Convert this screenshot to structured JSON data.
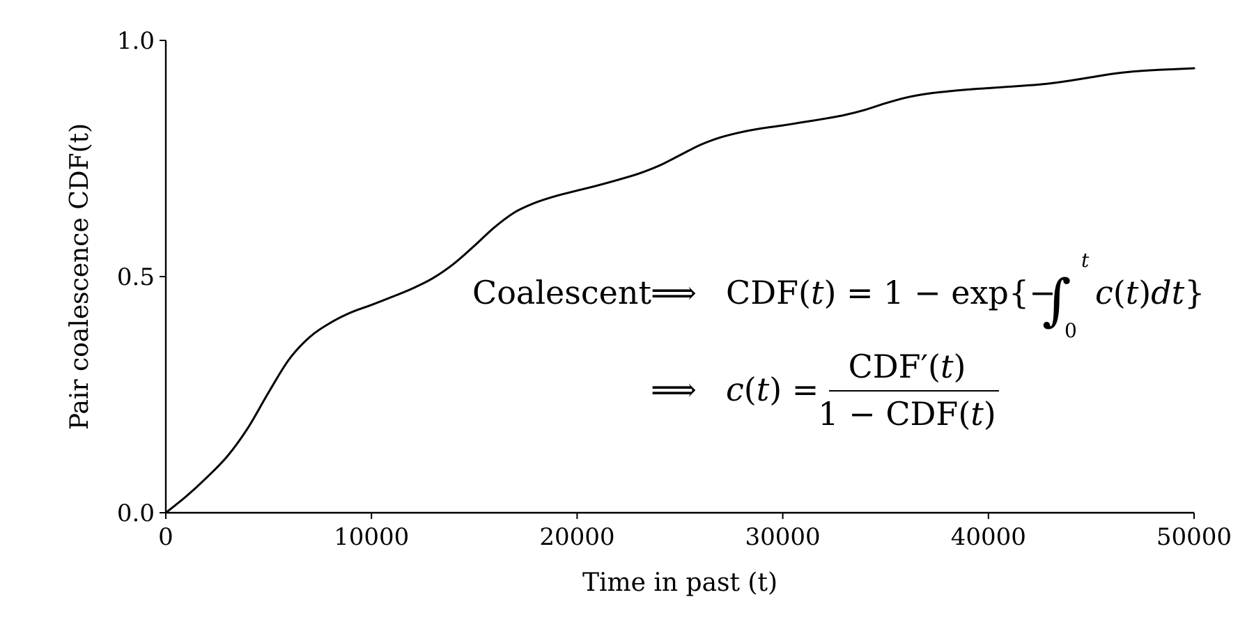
{
  "chart_data": {
    "type": "line",
    "title": "",
    "xlabel": "Time in past (t)",
    "ylabel": "Pair coalescence CDF(t)",
    "xlim": [
      0,
      50000
    ],
    "ylim": [
      0,
      1
    ],
    "x_ticks": [
      "0",
      "10000",
      "20000",
      "30000",
      "40000",
      "50000"
    ],
    "y_ticks": [
      "0.0",
      "0.5",
      "1.0"
    ],
    "grid": false,
    "legend": "none",
    "series": [
      {
        "x": [
          0,
          1000,
          2000,
          3000,
          4000,
          5000,
          6000,
          7000,
          8000,
          9000,
          10000,
          11000,
          12000,
          13000,
          14000,
          15000,
          16000,
          17000,
          18000,
          19000,
          20000,
          21000,
          22000,
          23000,
          24000,
          25000,
          26000,
          27000,
          28000,
          29000,
          30000,
          31000,
          32000,
          33000,
          34000,
          35000,
          36000,
          37000,
          38000,
          39000,
          40000,
          41000,
          42000,
          43000,
          44000,
          45000,
          46000,
          47000,
          48000,
          49000,
          50000
        ],
        "y": [
          0.0,
          0.035,
          0.075,
          0.12,
          0.18,
          0.255,
          0.325,
          0.372,
          0.402,
          0.424,
          0.44,
          0.457,
          0.475,
          0.497,
          0.527,
          0.565,
          0.605,
          0.637,
          0.657,
          0.671,
          0.682,
          0.693,
          0.705,
          0.718,
          0.735,
          0.757,
          0.779,
          0.795,
          0.806,
          0.814,
          0.82,
          0.827,
          0.834,
          0.842,
          0.853,
          0.867,
          0.879,
          0.887,
          0.892,
          0.896,
          0.899,
          0.902,
          0.905,
          0.909,
          0.915,
          0.922,
          0.929,
          0.934,
          0.937,
          0.939,
          0.941
        ]
      }
    ]
  },
  "annotation": {
    "coalescent": "Coalescent",
    "implies": "⟹",
    "line1_lhs_cdf": "CDF(",
    "var_t": "t",
    "line1_mid": ") = 1 − exp{−",
    "integral": "∫",
    "int_upper": "t",
    "int_lower": "0",
    "c": "c",
    "paren_open": "(",
    "paren_close": ")",
    "dt": "dt",
    "brace_close": "}",
    "line2_equals": ") =",
    "numerator_cdf": "CDF′(",
    "denominator_cdf": "1 − CDF("
  }
}
